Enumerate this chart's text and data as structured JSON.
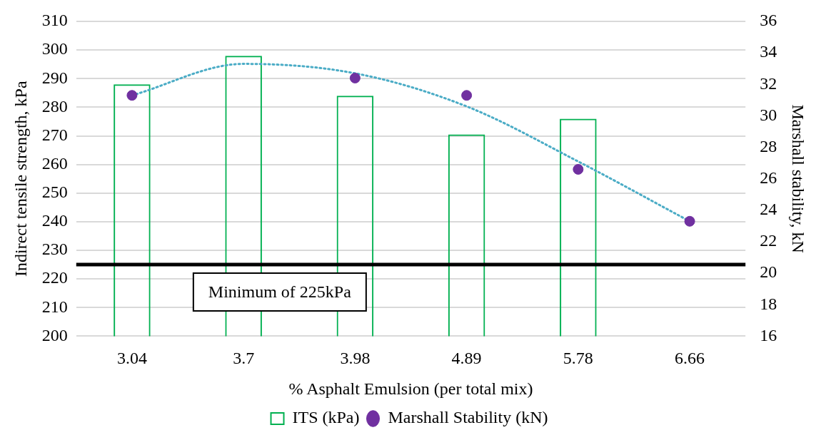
{
  "chart_data": {
    "type": "bar",
    "categories": [
      "3.04",
      "3.7",
      "3.98",
      "4.89",
      "5.78",
      "6.66"
    ],
    "xlabel": "% Asphalt Emulsion (per total mix)",
    "ylabel": "Indirect tensile strength, kPa",
    "y2label": "Marshall stability, kN",
    "ylim": [
      200,
      310
    ],
    "yticks": [
      200,
      210,
      220,
      230,
      240,
      250,
      260,
      270,
      280,
      290,
      300,
      310
    ],
    "y2lim": [
      16,
      36
    ],
    "y2ticks": [
      16,
      18,
      20,
      22,
      24,
      26,
      28,
      30,
      32,
      34,
      36
    ],
    "grid": "y",
    "legend": "bottom",
    "ref_lines": [
      {
        "axis": "y",
        "value": 225,
        "label": "Minimum of 225kPa",
        "color": "#000000"
      }
    ],
    "series": [
      {
        "name": "ITS (kPa)",
        "color": "#00b050",
        "values": [
          288,
          298,
          284,
          270.5,
          276,
          null
        ]
      },
      {
        "name": "Marshall Stability (kN)",
        "type": "scatter",
        "axis": "y2",
        "marker": "circle",
        "color": "#7030a0",
        "values": [
          31.3,
          null,
          32.4,
          31.3,
          26.6,
          23.3
        ]
      },
      {
        "type": "line",
        "axis": "y2",
        "marker": "none",
        "line_style": "dotted",
        "color": "#4bacc6",
        "values": [
          31.3,
          33.3,
          32.7,
          30.6,
          27.1,
          23.3
        ]
      }
    ]
  }
}
